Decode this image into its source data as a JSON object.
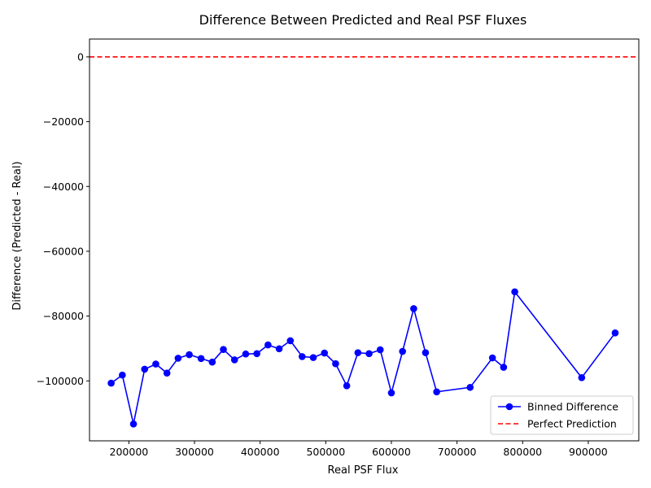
{
  "chart_data": {
    "type": "line",
    "title": "Difference Between Predicted and Real PSF Fluxes",
    "xlabel": "Real PSF Flux",
    "ylabel": "Difference (Predicted - Real)",
    "xlim": [
      140000,
      977000
    ],
    "ylim": [
      -118500,
      5500
    ],
    "xticks": [
      200000,
      300000,
      400000,
      500000,
      600000,
      700000,
      800000,
      900000
    ],
    "yticks": [
      0,
      -20000,
      -40000,
      -60000,
      -80000,
      -100000
    ],
    "grid": false,
    "legend_position": "lower right",
    "series": [
      {
        "name": "Binned Difference",
        "color": "#0000ff",
        "style": "solid",
        "marker": "circle",
        "x": [
          173000,
          190000,
          207000,
          224000,
          241000,
          258000,
          275000,
          292000,
          310000,
          327000,
          344000,
          361000,
          378000,
          395000,
          412000,
          429000,
          446000,
          464000,
          481000,
          498000,
          515000,
          532000,
          549000,
          566000,
          583000,
          600000,
          617000,
          634000,
          652000,
          669000,
          720000,
          754000,
          771000,
          788000,
          890000,
          941000
        ],
        "y": [
          -100700,
          -98200,
          -113300,
          -96400,
          -94800,
          -97600,
          -93000,
          -91900,
          -93100,
          -94200,
          -90300,
          -93500,
          -91700,
          -91600,
          -88900,
          -90100,
          -87600,
          -92500,
          -92800,
          -91400,
          -94700,
          -101500,
          -91300,
          -91600,
          -90400,
          -103700,
          -90900,
          -77700,
          -91300,
          -103400,
          -102000,
          -92900,
          -95800,
          -72500,
          -99000,
          -85200
        ]
      },
      {
        "name": "Perfect Prediction",
        "color": "#ff0000",
        "style": "dashed",
        "marker": "none",
        "constant_y": 0
      }
    ]
  }
}
